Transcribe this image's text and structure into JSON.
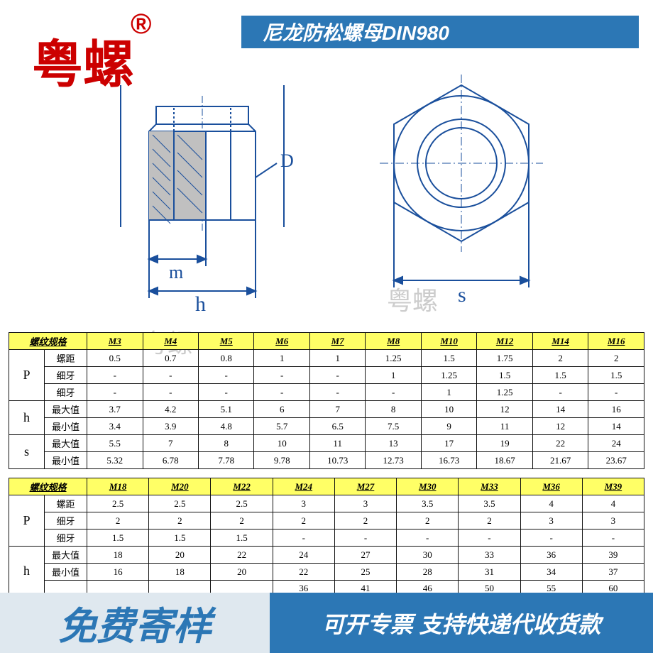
{
  "brand": "粤螺",
  "brand_mark": "®",
  "title": "尼龙防松螺母DIN980",
  "diagram": {
    "labels": {
      "D": "D",
      "m": "m",
      "h": "h",
      "s": "s"
    },
    "stroke": "#1a4f9c",
    "hatch_fill": "#b0b0b0"
  },
  "watermark": "粤螺",
  "table1": {
    "header_label": "螺纹规格",
    "sizes": [
      "M3",
      "M4",
      "M5",
      "M6",
      "M7",
      "M8",
      "M10",
      "M12",
      "M14",
      "M16"
    ],
    "groups": [
      {
        "param": "P",
        "rows": [
          {
            "label": "螺距",
            "vals": [
              "0.5",
              "0.7",
              "0.8",
              "1",
              "1",
              "1.25",
              "1.5",
              "1.75",
              "2",
              "2"
            ]
          },
          {
            "label": "细牙",
            "vals": [
              "-",
              "-",
              "-",
              "-",
              "-",
              "1",
              "1.25",
              "1.5",
              "1.5",
              "1.5"
            ]
          },
          {
            "label": "细牙",
            "vals": [
              "-",
              "-",
              "-",
              "-",
              "-",
              "-",
              "1",
              "1.25",
              "-",
              "-"
            ]
          }
        ]
      },
      {
        "param": "h",
        "rows": [
          {
            "label": "最大值",
            "vals": [
              "3.7",
              "4.2",
              "5.1",
              "6",
              "7",
              "8",
              "10",
              "12",
              "14",
              "16"
            ]
          },
          {
            "label": "最小值",
            "vals": [
              "3.4",
              "3.9",
              "4.8",
              "5.7",
              "6.5",
              "7.5",
              "9",
              "11",
              "12",
              "14"
            ]
          }
        ]
      },
      {
        "param": "s",
        "rows": [
          {
            "label": "最大值",
            "vals": [
              "5.5",
              "7",
              "8",
              "10",
              "11",
              "13",
              "17",
              "19",
              "22",
              "24"
            ]
          },
          {
            "label": "最小值",
            "vals": [
              "5.32",
              "6.78",
              "7.78",
              "9.78",
              "10.73",
              "12.73",
              "16.73",
              "18.67",
              "21.67",
              "23.67"
            ]
          }
        ]
      }
    ]
  },
  "table2": {
    "header_label": "螺纹规格",
    "sizes": [
      "M18",
      "M20",
      "M22",
      "M24",
      "M27",
      "M30",
      "M33",
      "M36",
      "M39"
    ],
    "groups": [
      {
        "param": "P",
        "rows": [
          {
            "label": "螺距",
            "vals": [
              "2.5",
              "2.5",
              "2.5",
              "3",
              "3",
              "3.5",
              "3.5",
              "4",
              "4"
            ]
          },
          {
            "label": "细牙",
            "vals": [
              "2",
              "2",
              "2",
              "2",
              "2",
              "2",
              "2",
              "3",
              "3"
            ]
          },
          {
            "label": "细牙",
            "vals": [
              "1.5",
              "1.5",
              "1.5",
              "-",
              "-",
              "-",
              "-",
              "-",
              "-"
            ]
          }
        ]
      },
      {
        "param": "h",
        "rows": [
          {
            "label": "最大值",
            "vals": [
              "18",
              "20",
              "22",
              "24",
              "27",
              "30",
              "33",
              "36",
              "39"
            ]
          },
          {
            "label": "最小值",
            "vals": [
              "16",
              "18",
              "20",
              "22",
              "25",
              "28",
              "31",
              "34",
              "37"
            ]
          },
          {
            "label": "",
            "vals": [
              "",
              "",
              "",
              "36",
              "41",
              "46",
              "50",
              "55",
              "60"
            ]
          }
        ]
      }
    ]
  },
  "footer": {
    "left": "免费寄样",
    "right": "可开专票 支持快递代收货款"
  },
  "colors": {
    "accent": "#2c77b5",
    "brand": "#cc0000",
    "header_bg": "#ffff66",
    "footer_left_bg": "#dfe8ef"
  }
}
